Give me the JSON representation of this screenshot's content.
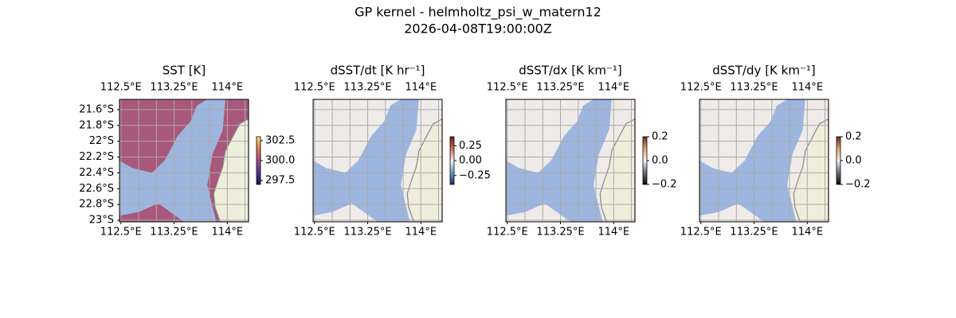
{
  "figure": {
    "title": "GP kernel - helmholtz_psi_w_matern12",
    "subtitle": "2026-04-08T19:00:00Z",
    "map": {
      "xlim": [
        112.48,
        114.3
      ],
      "ylim": [
        -21.47,
        -23.02
      ],
      "grid_lon": [
        112.5,
        112.75,
        113,
        113.25,
        113.5,
        113.75,
        114,
        114.25
      ],
      "grid_lat": [
        -21.6,
        -21.8,
        -22,
        -22.2,
        -22.4,
        -22.6,
        -22.8,
        -23
      ],
      "land_color": "#efeedb",
      "ocean_color": "#9db6e0",
      "grid_color": "#aaaaaa"
    },
    "panels": [
      {
        "title": "SST [K]",
        "field_color": "#a8587a",
        "xticks": [
          {
            "value": 112.5,
            "label": "112.5°E"
          },
          {
            "value": 113.25,
            "label": "113.25°E"
          },
          {
            "value": 114,
            "label": "114°E"
          }
        ],
        "yticks": [
          {
            "value": -21.6,
            "label": "21.6°S"
          },
          {
            "value": -21.8,
            "label": "21.8°S"
          },
          {
            "value": -22,
            "label": "22°S"
          },
          {
            "value": -22.2,
            "label": "22.2°S"
          },
          {
            "value": -22.4,
            "label": "22.4°S"
          },
          {
            "value": -22.6,
            "label": "22.6°S"
          },
          {
            "value": -22.8,
            "label": "22.8°S"
          },
          {
            "value": -23,
            "label": "23°S"
          }
        ],
        "colorbar": {
          "lim": [
            297.0,
            303.0
          ],
          "colors": [
            "#1b1f4d",
            "#4b3a8c",
            "#a3508a",
            "#e07a52",
            "#f4e87a"
          ],
          "ticks": [
            302.5,
            {
              "value": 300,
              "label": "300.0"
            },
            297.5
          ]
        }
      },
      {
        "title": "dSST/dt [K hr⁻¹]",
        "field_color": "#eeebe9",
        "xticks": [
          {
            "value": 112.5,
            "label": "112.5°E"
          },
          {
            "value": 113.25,
            "label": "113.25°E"
          },
          {
            "value": 114,
            "label": "114°E"
          }
        ],
        "colorbar": {
          "lim": [
            -0.4,
            0.4
          ],
          "colors": [
            "#1d2d6b",
            "#6c9ccc",
            "#f4f1ef",
            "#d46a56",
            "#6b1b1b"
          ],
          "ticks": [
            0.25,
            {
              "value": 0,
              "label": "0.00"
            },
            {
              "value": -0.25,
              "label": "−0.25"
            }
          ]
        }
      },
      {
        "title": "dSST/dx [K km⁻¹]",
        "field_color": "#efebe9",
        "xticks": [
          {
            "value": 112.5,
            "label": "112.5°E"
          },
          {
            "value": 113.25,
            "label": "113.25°E"
          },
          {
            "value": 114,
            "label": "114°E"
          }
        ],
        "colorbar": {
          "lim": [
            -0.2,
            0.2
          ],
          "colors": [
            "#0a0a14",
            "#6a6f80",
            "#f5f5f5",
            "#e0a878",
            "#6b2a10"
          ],
          "ticks": [
            0.2,
            {
              "value": 0,
              "label": "0.0"
            },
            {
              "value": -0.2,
              "label": "−0.2"
            }
          ]
        }
      },
      {
        "title": "dSST/dy [K km⁻¹]",
        "field_color": "#efebe9",
        "xticks": [
          {
            "value": 112.5,
            "label": "112.5°E"
          },
          {
            "value": 113.25,
            "label": "113.25°E"
          },
          {
            "value": 114,
            "label": "114°E"
          }
        ],
        "colorbar": {
          "lim": [
            -0.2,
            0.2
          ],
          "colors": [
            "#0a0a14",
            "#6a6f80",
            "#f5f5f5",
            "#e0a878",
            "#6b2a10"
          ],
          "ticks": [
            0.2,
            {
              "value": 0,
              "label": "0.0"
            },
            {
              "value": -0.2,
              "label": "−0.2"
            }
          ]
        }
      }
    ]
  }
}
